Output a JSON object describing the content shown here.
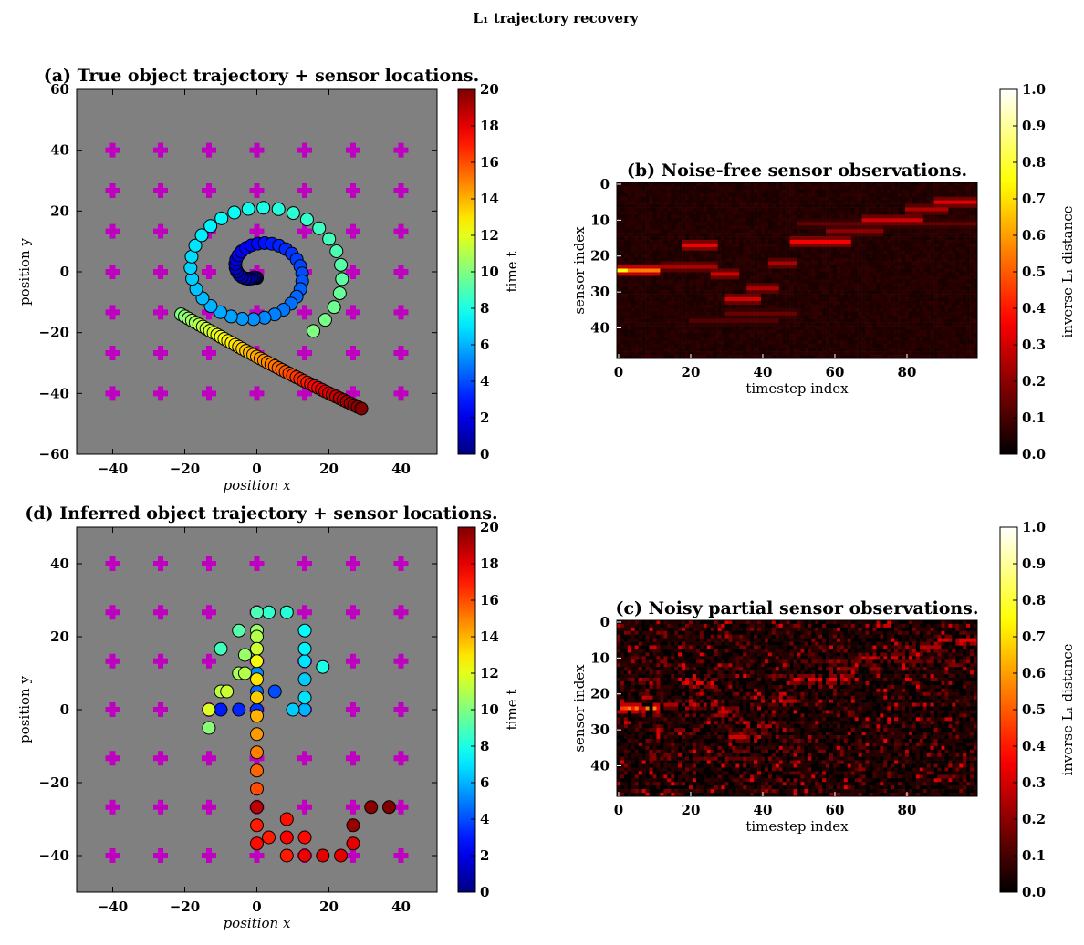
{
  "figure": {
    "suptitle": "L₁ trajectory recovery"
  },
  "colors": {
    "scatter_bg": "#808080",
    "sensor_marker": "#c000c0",
    "point_edge": "#000000"
  },
  "chart_data": [
    {
      "id": "a",
      "type": "scatter",
      "title": "(a) True object trajectory + sensor locations.",
      "xlabel": "position x",
      "ylabel": "position y",
      "xlim": [
        -50,
        50
      ],
      "ylim": [
        -60,
        60
      ],
      "xticks": [
        -40,
        -20,
        0,
        20,
        40
      ],
      "yticks": [
        -60,
        -40,
        -20,
        0,
        20,
        40,
        60
      ],
      "sensor_xs": [
        -40,
        -26.7,
        -13.3,
        0,
        13.3,
        26.7,
        40
      ],
      "sensor_ys": [
        -40,
        -26.7,
        -13.3,
        0,
        13.3,
        26.7,
        40
      ],
      "colorbar": {
        "label": "time t",
        "range": [
          0,
          20
        ],
        "ticks": [
          0,
          2,
          4,
          6,
          8,
          10,
          12,
          14,
          16,
          18,
          20
        ],
        "colormap": "jet"
      },
      "points_description": "spiral from (0,0) outward for t 0→10, then line from (-21,-14) to (29,-45) for t 10→20",
      "spiral": {
        "t_start": 0,
        "t_end": 10,
        "center": [
          0,
          0
        ],
        "r_start": 0,
        "r_end": 25
      },
      "tail": {
        "t_start": 10,
        "t_end": 20,
        "from": [
          -21,
          -14
        ],
        "to": [
          29,
          -45
        ]
      }
    },
    {
      "id": "b",
      "type": "heatmap",
      "title": "(b) Noise-free sensor observations.",
      "xlabel": "timestep index",
      "ylabel": "sensor index",
      "xticks": [
        0,
        20,
        40,
        60,
        80
      ],
      "yticks": [
        0,
        10,
        20,
        30,
        40
      ],
      "n_rows": 49,
      "n_cols": 100,
      "colorbar": {
        "label": "inverse L₁ distance",
        "range": [
          0,
          1
        ],
        "ticks": [
          0.0,
          0.1,
          0.2,
          0.3,
          0.4,
          0.5,
          0.6,
          0.7,
          0.8,
          0.9,
          1.0
        ],
        "colormap": "hot"
      }
    },
    {
      "id": "c",
      "type": "heatmap",
      "title": "(c) Noisy partial sensor observations.",
      "xlabel": "timestep index",
      "ylabel": "sensor index",
      "xticks": [
        0,
        20,
        40,
        60,
        80
      ],
      "yticks": [
        0,
        10,
        20,
        30,
        40
      ],
      "n_rows": 49,
      "n_cols": 100,
      "colorbar": {
        "label": "inverse L₁ distance",
        "range": [
          0,
          1
        ],
        "ticks": [
          0.0,
          0.1,
          0.2,
          0.3,
          0.4,
          0.5,
          0.6,
          0.7,
          0.8,
          0.9,
          1.0
        ],
        "colormap": "hot"
      }
    },
    {
      "id": "d",
      "type": "scatter",
      "title": "(d) Inferred object trajectory + sensor locations.",
      "xlabel": "position x",
      "ylabel": "position y",
      "xlim": [
        -50,
        50
      ],
      "ylim": [
        -50,
        50
      ],
      "xticks": [
        -40,
        -20,
        0,
        20,
        40
      ],
      "yticks": [
        -40,
        -20,
        0,
        20,
        40
      ],
      "sensor_xs": [
        -40,
        -26.7,
        -13.3,
        0,
        13.3,
        26.7,
        40
      ],
      "sensor_ys": [
        -40,
        -26.7,
        -13.3,
        0,
        13.3,
        26.7,
        40
      ],
      "colorbar": {
        "label": "time t",
        "range": [
          0,
          20
        ],
        "ticks": [
          0,
          2,
          4,
          6,
          8,
          10,
          12,
          14,
          16,
          18,
          20
        ],
        "colormap": "jet"
      },
      "points": [
        {
          "x": 0,
          "y": 0,
          "t": 3.5
        },
        {
          "x": -5,
          "y": 0,
          "t": 3.2
        },
        {
          "x": -10,
          "y": 0,
          "t": 3.0
        },
        {
          "x": 0,
          "y": 5,
          "t": 4.5
        },
        {
          "x": 0,
          "y": 10,
          "t": 5.2
        },
        {
          "x": 5,
          "y": 5,
          "t": 4.0
        },
        {
          "x": 13.3,
          "y": 0,
          "t": 6.0
        },
        {
          "x": 10,
          "y": 0,
          "t": 6.5
        },
        {
          "x": 13.3,
          "y": 3.3,
          "t": 7.0
        },
        {
          "x": 13.3,
          "y": 8.3,
          "t": 6.5
        },
        {
          "x": 13.3,
          "y": 13.3,
          "t": 7.0
        },
        {
          "x": 13.3,
          "y": 16.7,
          "t": 7.3
        },
        {
          "x": 13.3,
          "y": 21.7,
          "t": 7.5
        },
        {
          "x": 18.3,
          "y": 11.7,
          "t": 8.0
        },
        {
          "x": 8.3,
          "y": 26.7,
          "t": 8.3
        },
        {
          "x": 3.3,
          "y": 26.7,
          "t": 8.5
        },
        {
          "x": 0,
          "y": 26.7,
          "t": 9.0
        },
        {
          "x": -5,
          "y": 21.7,
          "t": 9.2
        },
        {
          "x": -10,
          "y": 16.7,
          "t": 8.8
        },
        {
          "x": -3.3,
          "y": 15,
          "t": 10.5
        },
        {
          "x": -5,
          "y": 10,
          "t": 10.8
        },
        {
          "x": -3.3,
          "y": 10,
          "t": 11.0
        },
        {
          "x": -10,
          "y": 5,
          "t": 11.2
        },
        {
          "x": -8.3,
          "y": 5,
          "t": 11.5
        },
        {
          "x": -13.3,
          "y": 0,
          "t": 11.8
        },
        {
          "x": -13.3,
          "y": -5,
          "t": 10.2
        },
        {
          "x": 0,
          "y": 21.7,
          "t": 10.5
        },
        {
          "x": 0,
          "y": 20,
          "t": 11.0
        },
        {
          "x": 0,
          "y": 16.7,
          "t": 11.5
        },
        {
          "x": 0,
          "y": 13.3,
          "t": 12.3
        },
        {
          "x": 0,
          "y": 8.3,
          "t": 13.0
        },
        {
          "x": 0,
          "y": 3.3,
          "t": 13.5
        },
        {
          "x": 0,
          "y": -1.7,
          "t": 14.0
        },
        {
          "x": 0,
          "y": -6.7,
          "t": 14.5
        },
        {
          "x": 0,
          "y": -11.7,
          "t": 15.0
        },
        {
          "x": 0,
          "y": -16.7,
          "t": 15.5
        },
        {
          "x": 0,
          "y": -21.7,
          "t": 16.0
        },
        {
          "x": 0,
          "y": -26.7,
          "t": 16.5
        },
        {
          "x": 0,
          "y": -31.7,
          "t": 17.0
        },
        {
          "x": 0,
          "y": -36.7,
          "t": 17.3
        },
        {
          "x": 3.3,
          "y": -35,
          "t": 17.0
        },
        {
          "x": 8.3,
          "y": -35,
          "t": 17.5
        },
        {
          "x": 8.3,
          "y": -30,
          "t": 17.2
        },
        {
          "x": 8.3,
          "y": -40,
          "t": 17.0
        },
        {
          "x": 13.3,
          "y": -35,
          "t": 17.3
        },
        {
          "x": 13.3,
          "y": -40,
          "t": 17.8
        },
        {
          "x": 18.3,
          "y": -40,
          "t": 18.0
        },
        {
          "x": 23.3,
          "y": -40,
          "t": 18.0
        },
        {
          "x": 26.7,
          "y": -36.7,
          "t": 18.0
        },
        {
          "x": 26.7,
          "y": -31.7,
          "t": 19.5
        },
        {
          "x": 31.7,
          "y": -26.7,
          "t": 19.8
        },
        {
          "x": 36.7,
          "y": -26.7,
          "t": 20.0
        },
        {
          "x": 0,
          "y": -26.7,
          "t": 18.8
        }
      ]
    }
  ]
}
